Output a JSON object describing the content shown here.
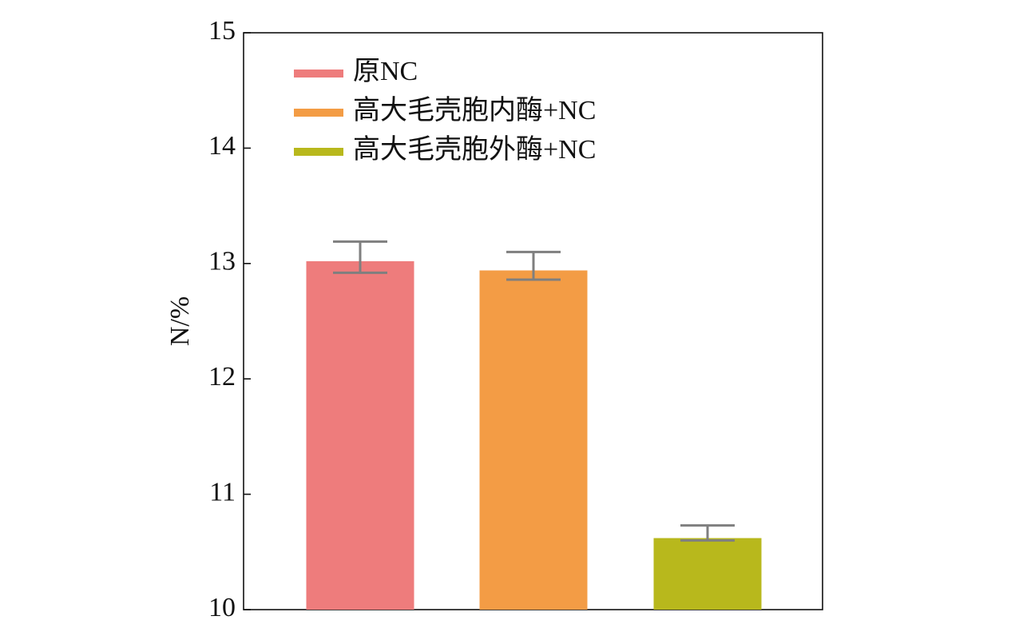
{
  "chart_data": {
    "type": "bar",
    "title": "",
    "xlabel": "",
    "ylabel": "N/%",
    "ylim": [
      10,
      15
    ],
    "yticks": [
      "10",
      "11",
      "12",
      "13",
      "14",
      "15"
    ],
    "grid": false,
    "legend_position": "top-left",
    "series": [
      {
        "name": "原NC",
        "value": 13.02,
        "error_low": 12.92,
        "error_high": 13.19,
        "color": "#ee7c7c"
      },
      {
        "name": "高大毛壳胞内酶+NC",
        "value": 12.94,
        "error_low": 12.86,
        "error_high": 13.1,
        "color": "#f39c45"
      },
      {
        "name": "高大毛壳胞外酶+NC",
        "value": 10.62,
        "error_low": 10.6,
        "error_high": 10.73,
        "color": "#b8b81c"
      }
    ],
    "error_bar_color": "#7f7f7f"
  }
}
